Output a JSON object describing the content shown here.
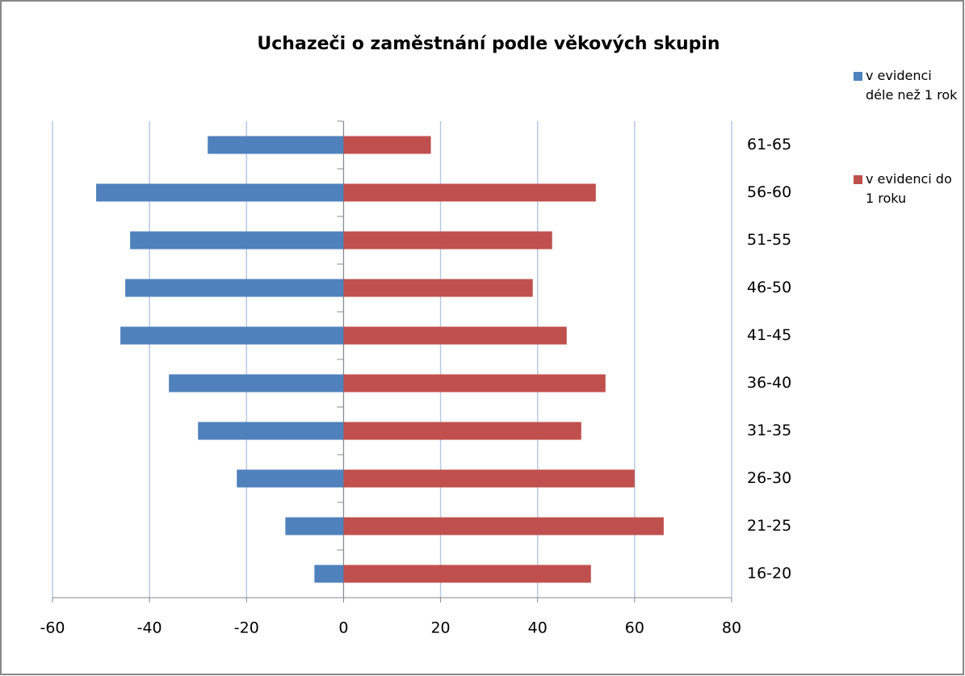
{
  "chart_data": {
    "type": "bar",
    "orientation": "horizontal",
    "title": "Uchazeči o zaměstnání podle věkových skupin",
    "categories": [
      "16-20",
      "21-25",
      "26-30",
      "31-35",
      "36-40",
      "41-45",
      "46-50",
      "51-55",
      "56-60",
      "61-65"
    ],
    "series": [
      {
        "name": "v evidenci déle než 1 rok",
        "color": "#4f81bd",
        "values": [
          -6,
          -12,
          -22,
          -30,
          -36,
          -46,
          -45,
          -44,
          -51,
          -28
        ]
      },
      {
        "name": "v evidenci do 1 roku",
        "color": "#c0504d",
        "values": [
          51,
          66,
          60,
          49,
          54,
          46,
          39,
          43,
          52,
          18
        ]
      }
    ],
    "xlim": [
      -60,
      80
    ],
    "xticks": [
      -60,
      -40,
      -20,
      0,
      20,
      40,
      60,
      80
    ],
    "grid": true,
    "legend": "right"
  }
}
